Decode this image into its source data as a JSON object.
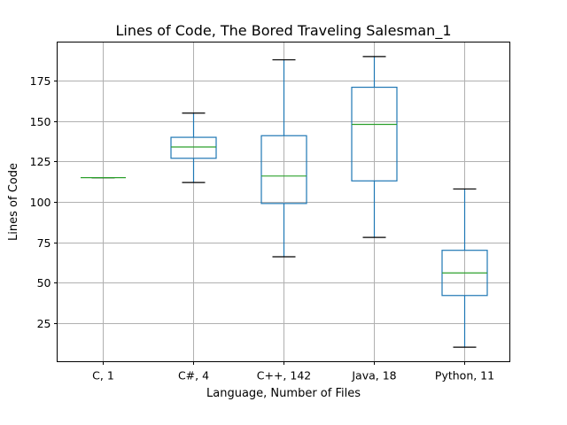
{
  "chart_data": {
    "type": "box",
    "title": "Lines of Code, The Bored Traveling Salesman_1",
    "xlabel": "Language, Number of Files",
    "ylabel": "Lines of Code",
    "ylim": [
      1,
      199
    ],
    "yticks": [
      25,
      50,
      75,
      100,
      125,
      150,
      175
    ],
    "grid": true,
    "categories": [
      "C, 1",
      "C#, 4",
      "C++, 142",
      "Java, 18",
      "Python, 11"
    ],
    "boxes": [
      {
        "category": "C, 1",
        "whisker_low": 115,
        "q1": 115,
        "median": 115,
        "q3": 115,
        "whisker_high": 115
      },
      {
        "category": "C#, 4",
        "whisker_low": 112,
        "q1": 127,
        "median": 134,
        "q3": 140,
        "whisker_high": 155
      },
      {
        "category": "C++, 142",
        "whisker_low": 66,
        "q1": 99,
        "median": 116,
        "q3": 141,
        "whisker_high": 188
      },
      {
        "category": "Java, 18",
        "whisker_low": 78,
        "q1": 113,
        "median": 148,
        "q3": 171,
        "whisker_high": 190
      },
      {
        "category": "Python, 11",
        "whisker_low": 10,
        "q1": 42,
        "median": 56,
        "q3": 70,
        "whisker_high": 108
      }
    ],
    "colors": {
      "box": "#1f77b4",
      "median": "#2ca02c",
      "whisker_cap": "#000000",
      "grid": "#b0b0b0",
      "axes": "#000000"
    }
  }
}
